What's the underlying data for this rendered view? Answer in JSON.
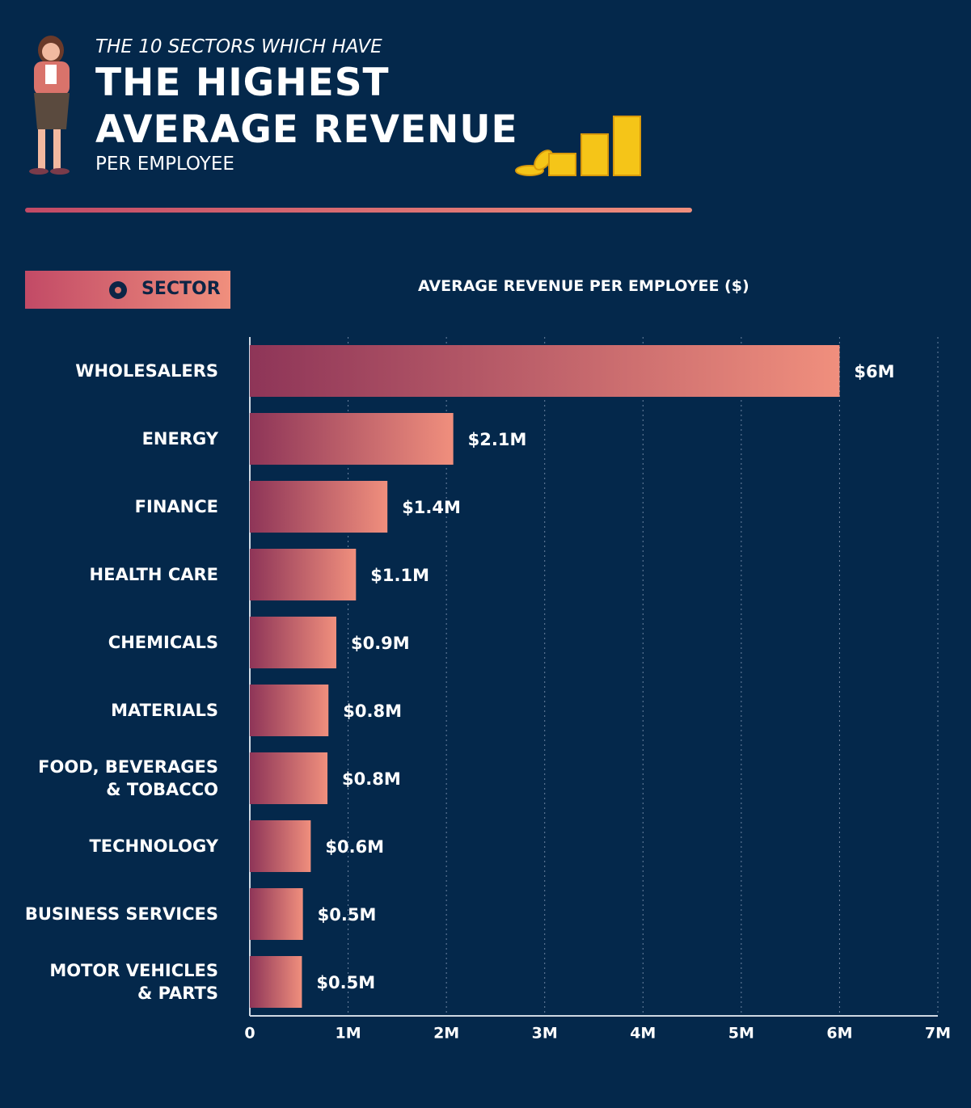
{
  "chart_data": {
    "type": "bar",
    "orientation": "horizontal",
    "kicker": "THE 10 SECTORS WHICH HAVE",
    "title": "THE HIGHEST\nAVERAGE REVENUE",
    "subtitle": "PER EMPLOYEE",
    "category_header": "SECTOR",
    "value_header": "AVERAGE REVENUE PER EMPLOYEE ($)",
    "categories": [
      "WHOLESALERS",
      "ENERGY",
      "FINANCE",
      "HEALTH CARE",
      "CHEMICALS",
      "MATERIALS",
      "FOOD, BEVERAGES\n& TOBACCO",
      "TECHNOLOGY",
      "BUSINESS SERVICES",
      "MOTOR VEHICLES\n& PARTS"
    ],
    "values": [
      6.0,
      2.07,
      1.4,
      1.08,
      0.88,
      0.8,
      0.79,
      0.62,
      0.54,
      0.53
    ],
    "value_labels": [
      "$6M",
      "$2.1M",
      "$1.4M",
      "$1.1M",
      "$0.9M",
      "$0.8M",
      "$0.8M",
      "$0.6M",
      "$0.5M",
      "$0.5M"
    ],
    "colors": [
      "#8e3558",
      "#f08f7d"
    ],
    "xlim": [
      0,
      7
    ],
    "xticks": [
      0,
      {
        "value": 1,
        "label": "1M"
      },
      {
        "value": 2,
        "label": "2M"
      },
      {
        "value": 3,
        "label": "3M"
      },
      {
        "value": 4,
        "label": "4M"
      },
      {
        "value": 5,
        "label": "5M"
      },
      {
        "value": 6,
        "label": "6M"
      },
      {
        "value": 7,
        "label": "7M"
      }
    ],
    "grid": true
  }
}
